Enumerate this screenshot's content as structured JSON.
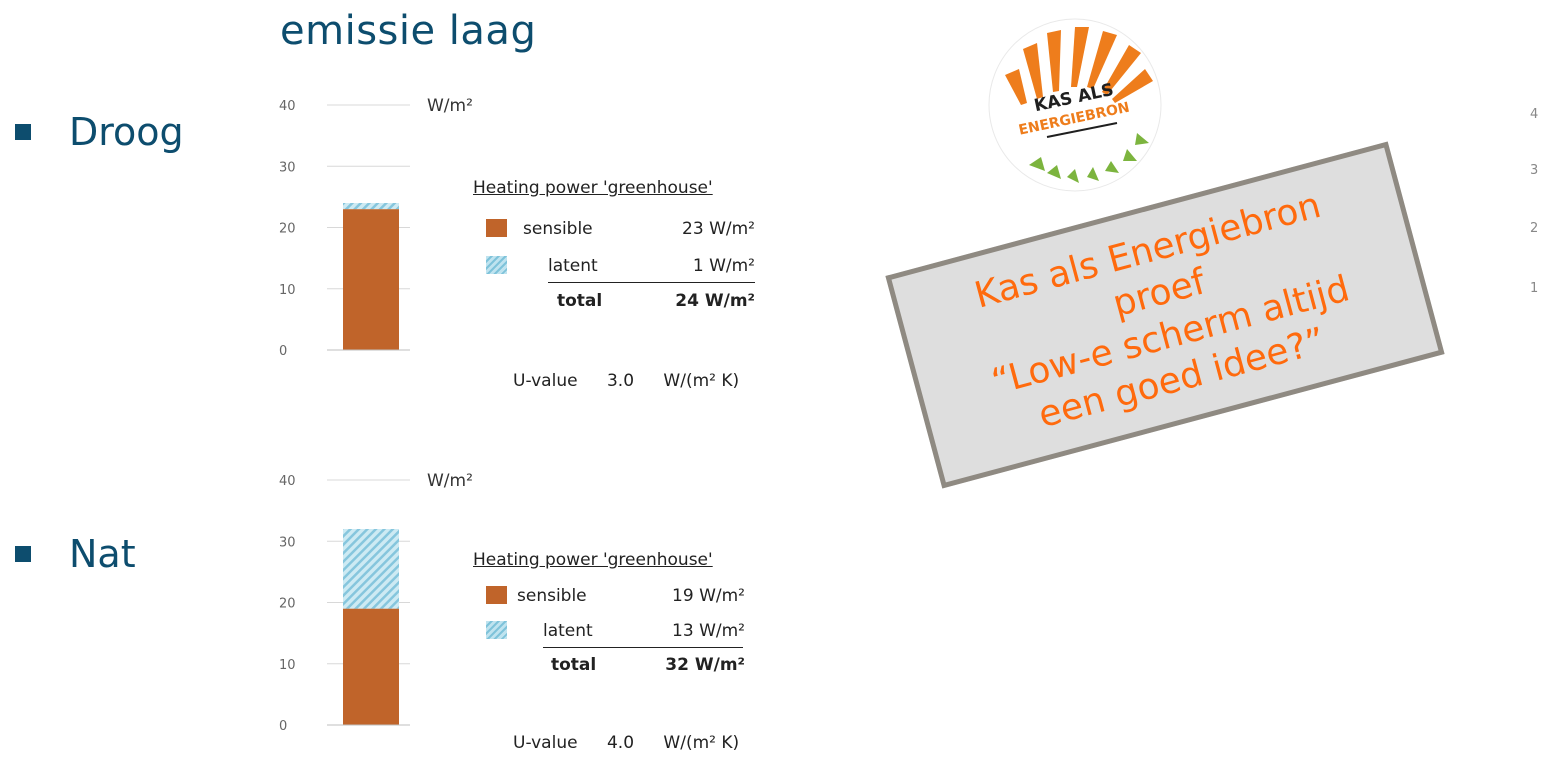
{
  "slide": {
    "heading": "emissie laag",
    "bullets": [
      {
        "label": "Droog"
      },
      {
        "label": "Nat"
      }
    ]
  },
  "colors": {
    "sensible": "#c0642a",
    "latent": "#9fd3e6",
    "heading": "#0d4d6e",
    "note_text": "#ff6a0d"
  },
  "chart_data": [
    {
      "type": "bar",
      "stacked": true,
      "unit_label": "W/m²",
      "ylim": [
        0,
        40
      ],
      "yticks": [
        0,
        10,
        20,
        30,
        40
      ],
      "series": [
        {
          "name": "sensible",
          "values": [
            23
          ]
        },
        {
          "name": "latent",
          "values": [
            1
          ]
        }
      ],
      "legend": {
        "title": "Heating power 'greenhouse'",
        "rows": [
          {
            "name": "sensible",
            "value": "23 W/m²"
          },
          {
            "name": "latent",
            "value": "1 W/m²"
          },
          {
            "name": "total",
            "value": "24 W/m²"
          }
        ]
      },
      "u_value": {
        "label": "U-value",
        "value": "3.0",
        "unit": "W/(m² K)"
      }
    },
    {
      "type": "bar",
      "stacked": true,
      "unit_label": "W/m²",
      "ylim": [
        0,
        40
      ],
      "yticks": [
        0,
        10,
        20,
        30,
        40
      ],
      "series": [
        {
          "name": "sensible",
          "values": [
            19
          ]
        },
        {
          "name": "latent",
          "values": [
            13
          ]
        }
      ],
      "legend": {
        "title": "Heating power 'greenhouse'",
        "rows": [
          {
            "name": "sensible",
            "value": "19 W/m²"
          },
          {
            "name": "latent",
            "value": "13 W/m²"
          },
          {
            "name": "total",
            "value": "32 W/m²"
          }
        ]
      },
      "u_value": {
        "label": "U-value",
        "value": "4.0",
        "unit": "W/(m² K)"
      }
    }
  ],
  "logo": {
    "line1": "KAS ALS",
    "line2": "ENERGIEBRON"
  },
  "note": {
    "lines": [
      "Kas als Energiebron",
      "proef",
      "“Low-e scherm altijd",
      "een goed idee?”"
    ]
  },
  "right_edge_ticks": [
    "4",
    "3",
    "2",
    "1"
  ]
}
